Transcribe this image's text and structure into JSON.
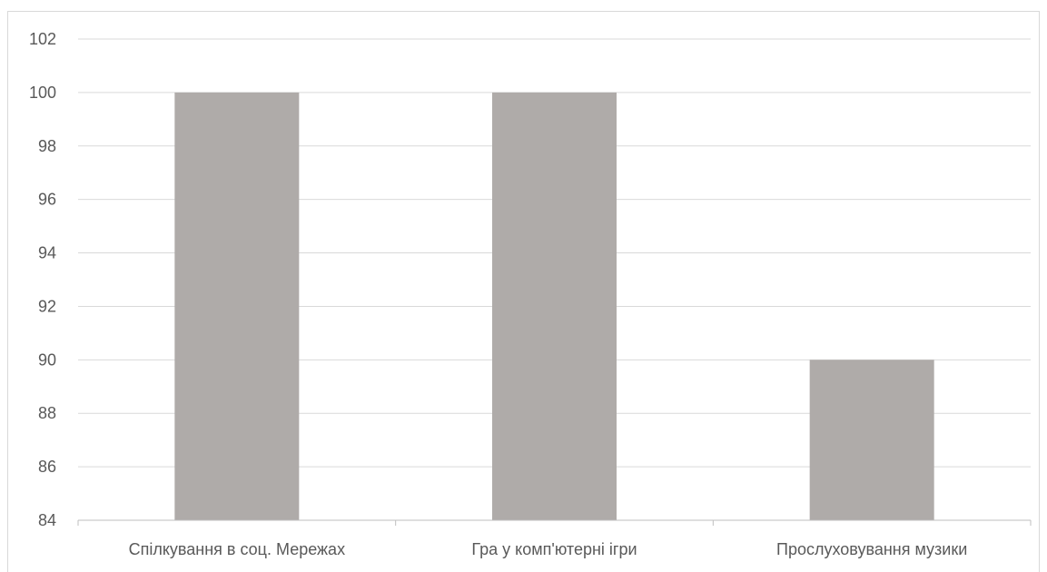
{
  "chart_data": {
    "type": "bar",
    "categories": [
      "Спілкування в соц. Мережах",
      "Гра у комп'ютерні ігри",
      "Прослуховування музики"
    ],
    "values": [
      100,
      100,
      90
    ],
    "ylim": [
      84,
      102
    ],
    "yticks": [
      84,
      86,
      88,
      90,
      92,
      94,
      96,
      98,
      100,
      102
    ],
    "grid": true,
    "bar_color": "#afaba9",
    "gridline_color": "#d9d9d9",
    "axis_color": "#bfbfbf",
    "text_color": "#595959"
  }
}
